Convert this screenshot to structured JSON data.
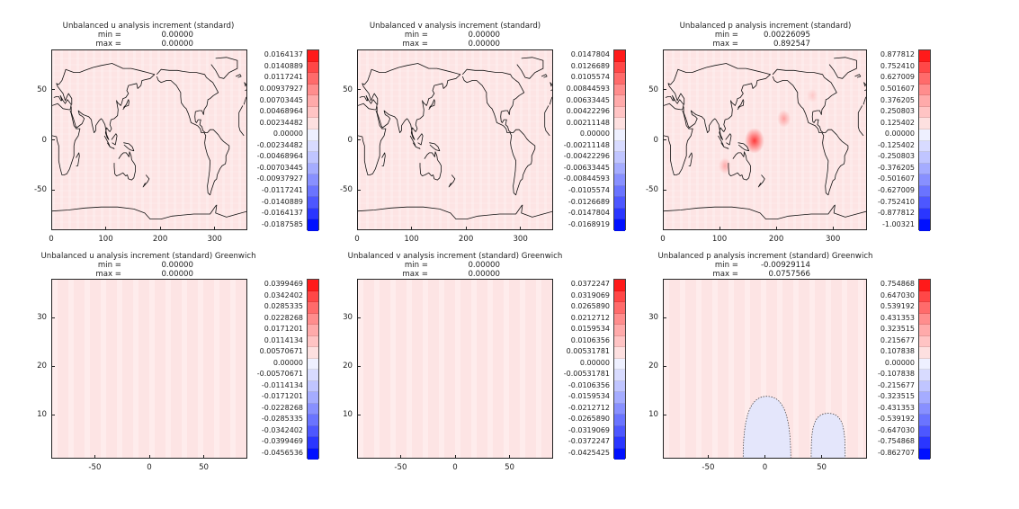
{
  "colors": {
    "background_field": "#fde4e4",
    "positive_max": "#ff1a1a",
    "negative_max": "#0000ff",
    "coast": "#111111",
    "contour_dash": "#333333"
  },
  "chart_data": [
    {
      "type": "heatmap",
      "title": "Unbalanced u analysis increment (standard)",
      "min_label": "min =",
      "min_value": "0.00000",
      "max_label": "max =",
      "max_value": "0.00000",
      "x_ticks": [
        "0",
        "100",
        "200",
        "300"
      ],
      "x_tick_values": [
        0,
        100,
        200,
        300
      ],
      "xlim": [
        0,
        360
      ],
      "y_ticks": [
        "50",
        "0",
        "-50"
      ],
      "y_tick_values": [
        50,
        0,
        -50
      ],
      "ylim": [
        -90,
        90
      ],
      "map": "world coastlines",
      "colorbar": [
        "0.0164137",
        "0.0140889",
        "0.0117241",
        "0.00937927",
        "0.00703445",
        "0.00468964",
        "0.00234482",
        "0.00000",
        "-0.00234482",
        "-0.00468964",
        "-0.00703445",
        "-0.00937927",
        "-0.0117241",
        "-0.0140889",
        "-0.0164137",
        "-0.0187585"
      ]
    },
    {
      "type": "heatmap",
      "title": "Unbalanced v analysis increment (standard)",
      "min_label": "min =",
      "min_value": "0.00000",
      "max_label": "max =",
      "max_value": "0.00000",
      "x_ticks": [
        "0",
        "100",
        "200",
        "300"
      ],
      "x_tick_values": [
        0,
        100,
        200,
        300
      ],
      "xlim": [
        0,
        360
      ],
      "y_ticks": [
        "50",
        "0",
        "-50"
      ],
      "y_tick_values": [
        50,
        0,
        -50
      ],
      "ylim": [
        -90,
        90
      ],
      "map": "world coastlines",
      "colorbar": [
        "0.0147804",
        "0.0126689",
        "0.0105574",
        "0.00844593",
        "0.00633445",
        "0.00422296",
        "0.00211148",
        "0.00000",
        "-0.00211148",
        "-0.00422296",
        "-0.00633445",
        "-0.00844593",
        "-0.0105574",
        "-0.0126689",
        "-0.0147804",
        "-0.0168919"
      ]
    },
    {
      "type": "heatmap",
      "title": "Unbalanced p analysis increment (standard)",
      "min_label": "min =",
      "min_value": "0.00226095",
      "max_label": "max =",
      "max_value": "0.892547",
      "x_ticks": [
        "0",
        "100",
        "200",
        "300"
      ],
      "x_tick_values": [
        0,
        100,
        200,
        300
      ],
      "xlim": [
        0,
        360
      ],
      "y_ticks": [
        "50",
        "0",
        "-50"
      ],
      "y_tick_values": [
        50,
        0,
        -50
      ],
      "ylim": [
        -90,
        90
      ],
      "map": "world coastlines",
      "hotspots": [
        {
          "x": 160,
          "y": 0,
          "strength": 0.85
        },
        {
          "x": 212,
          "y": 22,
          "strength": 0.35
        },
        {
          "x": 108,
          "y": -25,
          "strength": 0.3
        },
        {
          "x": 262,
          "y": 45,
          "strength": 0.15
        }
      ],
      "colorbar": [
        "0.877812",
        "0.752410",
        "0.627009",
        "0.501607",
        "0.376205",
        "0.250803",
        "0.125402",
        "0.00000",
        "-0.125402",
        "-0.250803",
        "-0.376205",
        "-0.501607",
        "-0.627009",
        "-0.752410",
        "-0.877812",
        "-1.00321"
      ]
    },
    {
      "type": "heatmap",
      "title": "Unbalanced u analysis increment (standard) Greenwich",
      "min_label": "min =",
      "min_value": "0.00000",
      "max_label": "max =",
      "max_value": "0.00000",
      "x_ticks": [
        "-50",
        "0",
        "50"
      ],
      "x_tick_values": [
        -50,
        0,
        50
      ],
      "xlim": [
        -90,
        90
      ],
      "y_ticks": [
        "30",
        "20",
        "10"
      ],
      "y_tick_values": [
        30,
        20,
        10
      ],
      "ylim": [
        1,
        38
      ],
      "colorbar": [
        "0.0399469",
        "0.0342402",
        "0.0285335",
        "0.0228268",
        "0.0171201",
        "0.0114134",
        "0.00570671",
        "0.00000",
        "-0.00570671",
        "-0.0114134",
        "-0.0171201",
        "-0.0228268",
        "-0.0285335",
        "-0.0342402",
        "-0.0399469",
        "-0.0456536"
      ]
    },
    {
      "type": "heatmap",
      "title": "Unbalanced v analysis increment (standard) Greenwich",
      "min_label": "min =",
      "min_value": "0.00000",
      "max_label": "max =",
      "max_value": "0.00000",
      "x_ticks": [
        "-50",
        "0",
        "50"
      ],
      "x_tick_values": [
        -50,
        0,
        50
      ],
      "xlim": [
        -90,
        90
      ],
      "y_ticks": [
        "30",
        "20",
        "10"
      ],
      "y_tick_values": [
        30,
        20,
        10
      ],
      "ylim": [
        1,
        38
      ],
      "colorbar": [
        "0.0372247",
        "0.0319069",
        "0.0265890",
        "0.0212712",
        "0.0159534",
        "0.0106356",
        "0.00531781",
        "0.00000",
        "-0.00531781",
        "-0.0106356",
        "-0.0159534",
        "-0.0212712",
        "-0.0265890",
        "-0.0319069",
        "-0.0372247",
        "-0.0425425"
      ]
    },
    {
      "type": "heatmap",
      "title": "Unbalanced p analysis increment (standard) Greenwich",
      "min_label": "min =",
      "min_value": "-0.00929114",
      "max_label": "max =",
      "max_value": "0.0757566",
      "x_ticks": [
        "-50",
        "0",
        "50"
      ],
      "x_tick_values": [
        -50,
        0,
        50
      ],
      "xlim": [
        -90,
        90
      ],
      "y_ticks": [
        "10",
        "20",
        "30"
      ],
      "y_tick_values": [
        10,
        20,
        30
      ],
      "ylim": [
        1,
        38
      ],
      "negative_regions": [
        {
          "x0": -20,
          "x1": 22,
          "top": 14
        },
        {
          "x0": 40,
          "x1": 70,
          "top": 10.5
        }
      ],
      "colorbar": [
        "0.754868",
        "0.647030",
        "0.539192",
        "0.431353",
        "0.323515",
        "0.215677",
        "0.107838",
        "0.00000",
        "-0.107838",
        "-0.215677",
        "-0.323515",
        "-0.431353",
        "-0.539192",
        "-0.647030",
        "-0.754868",
        "-0.862707"
      ]
    }
  ]
}
